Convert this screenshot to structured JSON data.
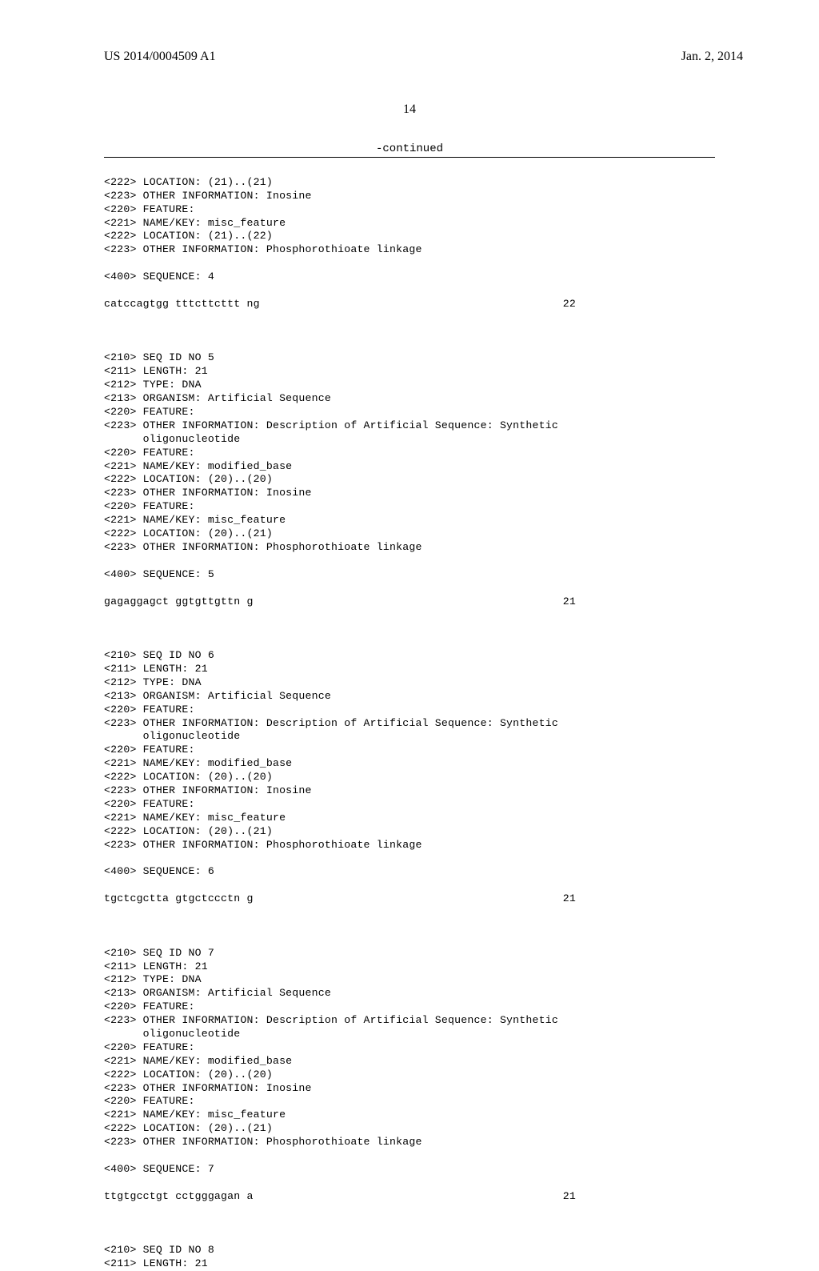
{
  "header": {
    "pub_number": "US 2014/0004509 A1",
    "pub_date": "Jan. 2, 2014"
  },
  "page_number": "14",
  "continued_label": "-continued",
  "block1": {
    "lines": [
      "<222> LOCATION: (21)..(21)",
      "<223> OTHER INFORMATION: Inosine",
      "<220> FEATURE:",
      "<221> NAME/KEY: misc_feature",
      "<222> LOCATION: (21)..(22)",
      "<223> OTHER INFORMATION: Phosphorothioate linkage"
    ],
    "seq_label": "<400> SEQUENCE: 4",
    "sequence": "catccagtgg tttcttcttt ng",
    "seq_num": "22"
  },
  "block2": {
    "lines": [
      "<210> SEQ ID NO 5",
      "<211> LENGTH: 21",
      "<212> TYPE: DNA",
      "<213> ORGANISM: Artificial Sequence",
      "<220> FEATURE:",
      "<223> OTHER INFORMATION: Description of Artificial Sequence: Synthetic",
      "      oligonucleotide",
      "<220> FEATURE:",
      "<221> NAME/KEY: modified_base",
      "<222> LOCATION: (20)..(20)",
      "<223> OTHER INFORMATION: Inosine",
      "<220> FEATURE:",
      "<221> NAME/KEY: misc_feature",
      "<222> LOCATION: (20)..(21)",
      "<223> OTHER INFORMATION: Phosphorothioate linkage"
    ],
    "seq_label": "<400> SEQUENCE: 5",
    "sequence": "gagaggagct ggtgttgttn g",
    "seq_num": "21"
  },
  "block3": {
    "lines": [
      "<210> SEQ ID NO 6",
      "<211> LENGTH: 21",
      "<212> TYPE: DNA",
      "<213> ORGANISM: Artificial Sequence",
      "<220> FEATURE:",
      "<223> OTHER INFORMATION: Description of Artificial Sequence: Synthetic",
      "      oligonucleotide",
      "<220> FEATURE:",
      "<221> NAME/KEY: modified_base",
      "<222> LOCATION: (20)..(20)",
      "<223> OTHER INFORMATION: Inosine",
      "<220> FEATURE:",
      "<221> NAME/KEY: misc_feature",
      "<222> LOCATION: (20)..(21)",
      "<223> OTHER INFORMATION: Phosphorothioate linkage"
    ],
    "seq_label": "<400> SEQUENCE: 6",
    "sequence": "tgctcgctta gtgctccctn g",
    "seq_num": "21"
  },
  "block4": {
    "lines": [
      "<210> SEQ ID NO 7",
      "<211> LENGTH: 21",
      "<212> TYPE: DNA",
      "<213> ORGANISM: Artificial Sequence",
      "<220> FEATURE:",
      "<223> OTHER INFORMATION: Description of Artificial Sequence: Synthetic",
      "      oligonucleotide",
      "<220> FEATURE:",
      "<221> NAME/KEY: modified_base",
      "<222> LOCATION: (20)..(20)",
      "<223> OTHER INFORMATION: Inosine",
      "<220> FEATURE:",
      "<221> NAME/KEY: misc_feature",
      "<222> LOCATION: (20)..(21)",
      "<223> OTHER INFORMATION: Phosphorothioate linkage"
    ],
    "seq_label": "<400> SEQUENCE: 7",
    "sequence": "ttgtgcctgt cctgggagan a",
    "seq_num": "21"
  },
  "block5": {
    "lines": [
      "<210> SEQ ID NO 8",
      "<211> LENGTH: 21"
    ]
  }
}
